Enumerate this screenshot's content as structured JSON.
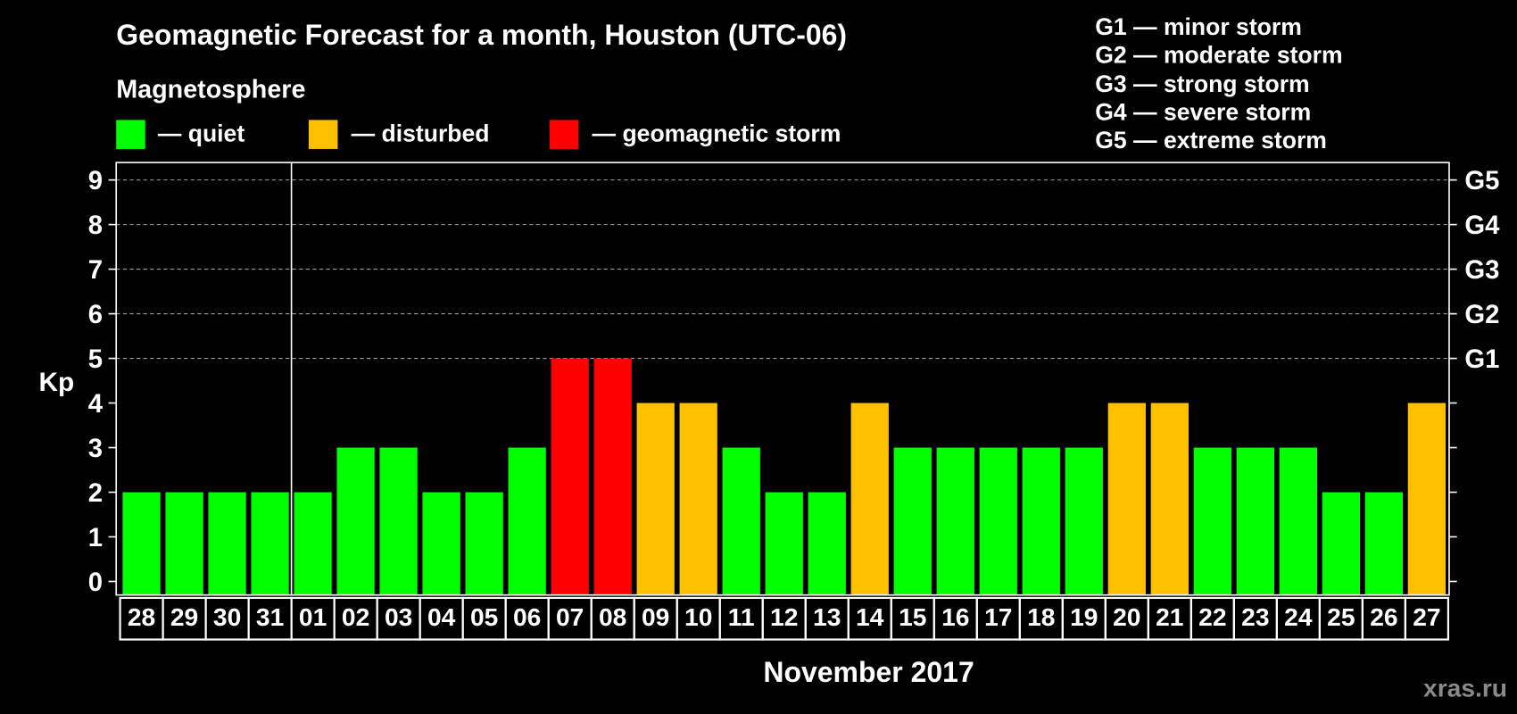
{
  "chart_data": {
    "type": "bar",
    "title": "Geomagnetic Forecast for a month, Houston (UTC-06)",
    "xlabel": "November 2017",
    "ylabel": "Kp",
    "ylim": [
      0,
      9
    ],
    "yticks": [
      "0",
      "1",
      "2",
      "3",
      "4",
      "5",
      "6",
      "7",
      "8",
      "9"
    ],
    "gridlines_at": [
      5,
      6,
      7,
      8,
      9
    ],
    "categories": [
      "28",
      "29",
      "30",
      "31",
      "01",
      "02",
      "03",
      "04",
      "05",
      "06",
      "07",
      "08",
      "09",
      "10",
      "11",
      "12",
      "13",
      "14",
      "15",
      "16",
      "17",
      "18",
      "19",
      "20",
      "21",
      "22",
      "23",
      "24",
      "25",
      "26",
      "27"
    ],
    "values": [
      2,
      2,
      2,
      2,
      2,
      3,
      3,
      2,
      2,
      3,
      5,
      5,
      4,
      4,
      3,
      2,
      2,
      4,
      3,
      3,
      3,
      3,
      3,
      4,
      4,
      3,
      3,
      3,
      2,
      2,
      4
    ],
    "month_start_index": 4,
    "level_thresholds": {
      "disturbed": 4,
      "storm": 5
    },
    "storm_scale_axis": [
      {
        "kp": 5,
        "label": "G1"
      },
      {
        "kp": 6,
        "label": "G2"
      },
      {
        "kp": 7,
        "label": "G3"
      },
      {
        "kp": 8,
        "label": "G4"
      },
      {
        "kp": 9,
        "label": "G5"
      }
    ]
  },
  "legend": {
    "heading": "Magnetosphere",
    "items": [
      {
        "label": "— quiet",
        "color": "#00ff00"
      },
      {
        "label": "— disturbed",
        "color": "#ffc000"
      },
      {
        "label": "— geomagnetic storm",
        "color": "#ff0000"
      }
    ]
  },
  "storm_scale": [
    "G1 — minor storm",
    "G2 — moderate storm",
    "G3 — strong storm",
    "G4 — severe storm",
    "G5 — extreme storm"
  ],
  "colors": {
    "background": "#000000",
    "text": "#ffffff",
    "grid": "#9a9a9a",
    "watermark": "#8a8a8a"
  },
  "watermark": "xras.ru"
}
